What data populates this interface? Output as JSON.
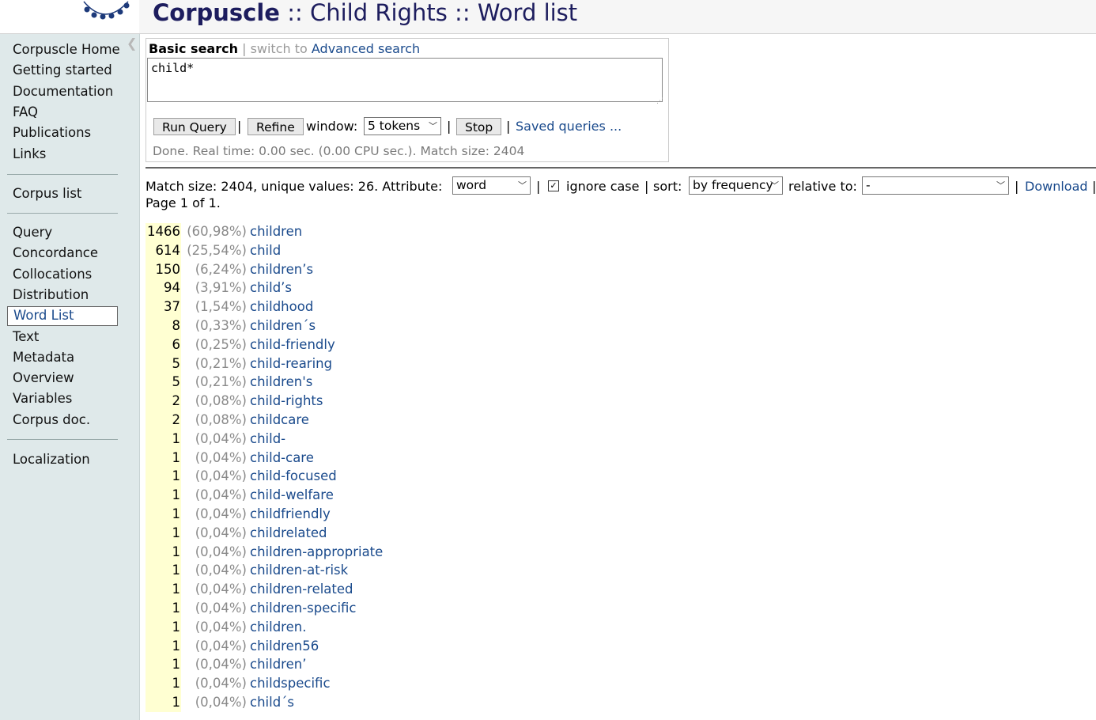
{
  "header": {
    "brand": "Corpuscle",
    "sep1": " :: ",
    "corpus": "Child Rights",
    "sep2": " :: ",
    "page": "Word list"
  },
  "sidebar": {
    "collapse_icon": "chevron-left-icon",
    "groups": [
      [
        "Corpuscle Home",
        "Getting started",
        "Documentation",
        "FAQ",
        "Publications",
        "Links"
      ],
      [
        "Corpus list"
      ],
      [
        "Query",
        "Concordance",
        "Collocations",
        "Distribution",
        "Word List",
        "Text",
        "Metadata",
        "Overview",
        "Variables",
        "Corpus doc."
      ],
      [
        "Localization"
      ]
    ],
    "active": "Word List"
  },
  "search": {
    "mode_current": "Basic search",
    "mode_sep": " | ",
    "mode_switch_prefix": "switch to ",
    "mode_switch_link": "Advanced search",
    "query": "child*",
    "run_label": "Run Query",
    "refine_label": "Refine",
    "window_label": "window:",
    "window_value": "5 tokens",
    "stop_label": "Stop",
    "saved_label": "Saved queries ...",
    "status": "Done. Real time: 0.00 sec. (0.00 CPU sec.). Match size: 2404"
  },
  "results": {
    "summary": "Match size: 2404, unique values: 26. Attribute:",
    "attribute_value": "word",
    "ignore_case_label": "ignore case",
    "ignore_case_checked": true,
    "sort_label": "sort:",
    "sort_value": "by frequency",
    "relative_label": "relative to:",
    "relative_value": "-",
    "download_label": "Download",
    "page_info": "Page 1 of 1.",
    "rows": [
      {
        "count": "1466",
        "pct": "(60,98%)",
        "word": "children"
      },
      {
        "count": "614",
        "pct": "(25,54%)",
        "word": "child"
      },
      {
        "count": "150",
        "pct": "(6,24%)",
        "word": "children’s"
      },
      {
        "count": "94",
        "pct": "(3,91%)",
        "word": "child’s"
      },
      {
        "count": "37",
        "pct": "(1,54%)",
        "word": "childhood"
      },
      {
        "count": "8",
        "pct": "(0,33%)",
        "word": "children´s"
      },
      {
        "count": "6",
        "pct": "(0,25%)",
        "word": "child-friendly"
      },
      {
        "count": "5",
        "pct": "(0,21%)",
        "word": "child-rearing"
      },
      {
        "count": "5",
        "pct": "(0,21%)",
        "word": "children's"
      },
      {
        "count": "2",
        "pct": "(0,08%)",
        "word": "child-rights"
      },
      {
        "count": "2",
        "pct": "(0,08%)",
        "word": "childcare"
      },
      {
        "count": "1",
        "pct": "(0,04%)",
        "word": "child-"
      },
      {
        "count": "1",
        "pct": "(0,04%)",
        "word": "child-care"
      },
      {
        "count": "1",
        "pct": "(0,04%)",
        "word": "child-focused"
      },
      {
        "count": "1",
        "pct": "(0,04%)",
        "word": "child-welfare"
      },
      {
        "count": "1",
        "pct": "(0,04%)",
        "word": "childfriendly"
      },
      {
        "count": "1",
        "pct": "(0,04%)",
        "word": "childrelated"
      },
      {
        "count": "1",
        "pct": "(0,04%)",
        "word": "children-appropriate"
      },
      {
        "count": "1",
        "pct": "(0,04%)",
        "word": "children-at-risk"
      },
      {
        "count": "1",
        "pct": "(0,04%)",
        "word": "children-related"
      },
      {
        "count": "1",
        "pct": "(0,04%)",
        "word": "children-specific"
      },
      {
        "count": "1",
        "pct": "(0,04%)",
        "word": "children."
      },
      {
        "count": "1",
        "pct": "(0,04%)",
        "word": "children56"
      },
      {
        "count": "1",
        "pct": "(0,04%)",
        "word": "children’"
      },
      {
        "count": "1",
        "pct": "(0,04%)",
        "word": "childspecific"
      },
      {
        "count": "1",
        "pct": "(0,04%)",
        "word": "child´s"
      }
    ]
  },
  "colors": {
    "link": "#1a4a8c",
    "sidebar_bg": "#dfe9ea",
    "freq_highlight": "#ffffd2",
    "title": "#1d1d5e"
  }
}
